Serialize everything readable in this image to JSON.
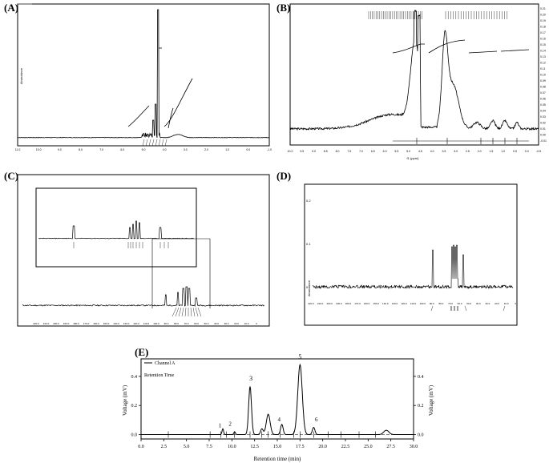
{
  "panels": {
    "A": {
      "label": "(A)"
    },
    "B": {
      "label": "(B)"
    },
    "C": {
      "label": "(C)"
    },
    "D": {
      "label": "(D)"
    },
    "E": {
      "label": "(E)"
    }
  },
  "chart_data": [
    {
      "panel": "A",
      "type": "line",
      "ylabel": "Abundance",
      "xlim": [
        -1.0,
        11.0
      ],
      "ticks": [
        "-1.0",
        "0.0",
        "1.0",
        "2.0",
        "3.0",
        "4.0",
        "5.0",
        "6.0",
        "7.0",
        "8.0",
        "9.0",
        "10.0",
        "11.0"
      ]
    },
    {
      "panel": "B",
      "type": "line",
      "xlabel": "f1 (ppm)",
      "xlim": [
        -0.5,
        10.0
      ],
      "ticks": [
        "10.0",
        "9.5",
        "9.0",
        "8.5",
        "8.0",
        "7.5",
        "7.0",
        "6.5",
        "6.0",
        "5.5",
        "5.0",
        "4.5",
        "4.0",
        "3.5",
        "3.0",
        "2.5",
        "2.0",
        "1.5",
        "1.0",
        "0.5",
        "0.0",
        "-0.5"
      ],
      "right_ticks": [
        "0.21",
        "0.20",
        "0.19",
        "0.18",
        "0.17",
        "0.16",
        "0.15",
        "0.14",
        "0.13",
        "0.12",
        "0.11",
        "0.10",
        "0.09",
        "0.08",
        "0.07",
        "0.06",
        "0.05",
        "0.04",
        "0.03",
        "0.02",
        "0.01",
        "0.00",
        "-0.01"
      ]
    },
    {
      "panel": "C",
      "type": "line",
      "inset": true,
      "ticks": [
        "220.0",
        "210.0",
        "200.0",
        "190.0",
        "180.0",
        "170.0",
        "160.0",
        "150.0",
        "140.0",
        "130.0",
        "120.0",
        "110.0",
        "100.0",
        "90.0",
        "80.0",
        "70.0",
        "60.0",
        "50.0",
        "40.0",
        "30.0",
        "20.0",
        "10.0",
        "0"
      ]
    },
    {
      "panel": "D",
      "type": "line",
      "ylabel": "Abundance",
      "yticks": [
        "0",
        "0.1",
        "0.2"
      ],
      "ticks": [
        "220.0",
        "210.0",
        "200.0",
        "190.0",
        "180.0",
        "170.0",
        "160.0",
        "150.0",
        "140.0",
        "130.0",
        "120.0",
        "110.0",
        "100.0",
        "90.0",
        "80.0",
        "70.0",
        "60.0",
        "50.0",
        "40.0",
        "30.0",
        "20.0",
        "10.0",
        "0"
      ]
    },
    {
      "panel": "E",
      "type": "line",
      "xlabel": "Retention time (min)",
      "ylabel": "Voltage (mV)",
      "ylabel_right": "Voltage (mV)",
      "legend": {
        "series": "Channel A",
        "label": "Retention Time"
      },
      "xlim": [
        0.0,
        30.0
      ],
      "ylim": [
        -0.03,
        0.52
      ],
      "xticks": [
        "0.0",
        "2.5",
        "5.0",
        "7.5",
        "10.0",
        "12.5",
        "15.0",
        "17.5",
        "20.0",
        "22.5",
        "25.0",
        "27.5",
        "30.0"
      ],
      "yticks": [
        "0.0",
        "0.2",
        "0.4"
      ],
      "series": [
        {
          "name": "Channel A",
          "x": [
            0.0,
            8.5,
            9.0,
            9.7,
            10.3,
            11.2,
            11.7,
            12.0,
            12.3,
            12.7,
            13.3,
            14.0,
            14.5,
            15.0,
            15.5,
            16.2,
            16.8,
            17.2,
            17.5,
            17.8,
            18.2,
            18.6,
            19.0,
            19.5,
            20.0,
            24.5,
            26.5,
            27.0,
            27.5,
            30.0
          ],
          "y": [
            0.0,
            0.0,
            0.04,
            0.0,
            0.02,
            0.0,
            0.08,
            0.33,
            0.28,
            0.02,
            0.04,
            0.14,
            0.05,
            0.02,
            0.07,
            0.03,
            0.18,
            0.4,
            0.48,
            0.42,
            0.18,
            0.03,
            0.05,
            0.01,
            0.0,
            0.0,
            0.03,
            0.03,
            0.0,
            0.0
          ]
        }
      ],
      "peak_labels": [
        {
          "text": "1",
          "x": 8.7,
          "y": 0.04
        },
        {
          "text": "2",
          "x": 9.8,
          "y": 0.05
        },
        {
          "text": "3",
          "x": 12.1,
          "y": 0.36
        },
        {
          "text": "4",
          "x": 15.2,
          "y": 0.08
        },
        {
          "text": "5",
          "x": 17.5,
          "y": 0.51
        },
        {
          "text": "6",
          "x": 19.3,
          "y": 0.08
        }
      ]
    }
  ]
}
